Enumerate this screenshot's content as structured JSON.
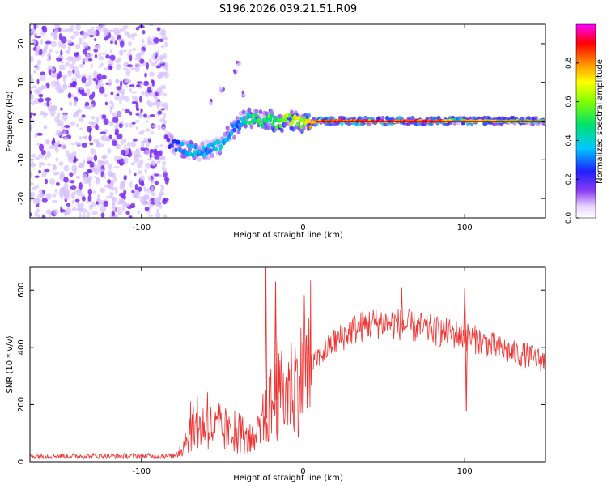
{
  "title": "S196.2026.039.21.51.R09",
  "colors": {
    "snr_line": "#ee3333",
    "frame": "#000000",
    "scatter_purple": "#7a2cf0",
    "scatter_light": "#d6c0ff"
  },
  "chart_data": [
    {
      "type": "heatmap",
      "xlabel": "Height of straight line (km)",
      "ylabel": "Frequency (Hz)",
      "xlim": [
        -169,
        150
      ],
      "ylim": [
        -25,
        25
      ],
      "xticks": [
        -100,
        0,
        100
      ],
      "yticks": [
        -20,
        -10,
        0,
        10,
        20
      ],
      "colorbar": {
        "label": "Normalized spectral amplitude",
        "range": [
          0,
          1
        ],
        "ticks": [
          "0.0",
          "0.2",
          "0.4",
          "0.6",
          "0.8"
        ],
        "tick_values": [
          0.0,
          0.2,
          0.4,
          0.6,
          0.8
        ],
        "colormap": "rainbow (white-purple-blue-cyan-green-yellow-red-magenta)"
      },
      "noise_region": {
        "x_from": -169,
        "x_to": -84,
        "frequency_range": [
          -25,
          25
        ]
      },
      "ridge": [
        {
          "x": -85,
          "f": -5,
          "amp": 0.15
        },
        {
          "x": -80,
          "f": -6,
          "amp": 0.25
        },
        {
          "x": -75,
          "f": -7,
          "amp": 0.35
        },
        {
          "x": -70,
          "f": -7.5,
          "amp": 0.4
        },
        {
          "x": -65,
          "f": -8,
          "amp": 0.38
        },
        {
          "x": -60,
          "f": -7.5,
          "amp": 0.35
        },
        {
          "x": -55,
          "f": -7,
          "amp": 0.4
        },
        {
          "x": -50,
          "f": -5.5,
          "amp": 0.35
        },
        {
          "x": -45,
          "f": -3,
          "amp": 0.35
        },
        {
          "x": -40,
          "f": -1,
          "amp": 0.3
        },
        {
          "x": -35,
          "f": 1,
          "amp": 0.45
        },
        {
          "x": -30,
          "f": 0.5,
          "amp": 0.55
        },
        {
          "x": -25,
          "f": 0,
          "amp": 0.5
        },
        {
          "x": -20,
          "f": 0.5,
          "amp": 0.55
        },
        {
          "x": -15,
          "f": -1,
          "amp": 0.6
        },
        {
          "x": -10,
          "f": 0.5,
          "amp": 0.65
        },
        {
          "x": -5,
          "f": 0,
          "amp": 0.7
        },
        {
          "x": 0,
          "f": -0.5,
          "amp": 0.6
        },
        {
          "x": 5,
          "f": -0.3,
          "amp": 0.75
        },
        {
          "x": 10,
          "f": 0,
          "amp": 0.85
        },
        {
          "x": 30,
          "f": 0,
          "amp": 0.9
        },
        {
          "x": 60,
          "f": 0,
          "amp": 0.88
        },
        {
          "x": 90,
          "f": 0,
          "amp": 0.82
        },
        {
          "x": 96,
          "f": 0.5,
          "amp": 0.3
        },
        {
          "x": 100,
          "f": 0,
          "amp": 0.75
        },
        {
          "x": 130,
          "f": 0,
          "amp": 0.6
        },
        {
          "x": 150,
          "f": 0,
          "amp": 0.55
        }
      ],
      "spur": [
        {
          "x": -40,
          "f": 15
        },
        {
          "x": -42,
          "f": 13
        },
        {
          "x": -50,
          "f": 8
        },
        {
          "x": -57,
          "f": 5
        },
        {
          "x": -37,
          "f": 7
        }
      ]
    },
    {
      "type": "line",
      "xlabel": "Height of straight line (km)",
      "ylabel": "SNR (10 * v/v)",
      "xlim": [
        -169,
        150
      ],
      "ylim": [
        0,
        680
      ],
      "xticks": [
        -100,
        0,
        100
      ],
      "yticks": [
        0,
        200,
        400,
        600
      ],
      "envelope": [
        {
          "x": -169,
          "y": 20
        },
        {
          "x": -140,
          "y": 20
        },
        {
          "x": -100,
          "y": 20
        },
        {
          "x": -80,
          "y": 20
        },
        {
          "x": -75,
          "y": 50
        },
        {
          "x": -70,
          "y": 110
        },
        {
          "x": -60,
          "y": 130
        },
        {
          "x": -50,
          "y": 100
        },
        {
          "x": -40,
          "y": 90
        },
        {
          "x": -30,
          "y": 60
        },
        {
          "x": -25,
          "y": 120
        },
        {
          "x": -20,
          "y": 200
        },
        {
          "x": -10,
          "y": 250
        },
        {
          "x": 0,
          "y": 300
        },
        {
          "x": 10,
          "y": 370
        },
        {
          "x": 20,
          "y": 420
        },
        {
          "x": 30,
          "y": 460
        },
        {
          "x": 40,
          "y": 480
        },
        {
          "x": 50,
          "y": 490
        },
        {
          "x": 60,
          "y": 480
        },
        {
          "x": 70,
          "y": 470
        },
        {
          "x": 80,
          "y": 460
        },
        {
          "x": 90,
          "y": 450
        },
        {
          "x": 100,
          "y": 440
        },
        {
          "x": 110,
          "y": 420
        },
        {
          "x": 120,
          "y": 400
        },
        {
          "x": 130,
          "y": 380
        },
        {
          "x": 140,
          "y": 370
        },
        {
          "x": 150,
          "y": 350
        }
      ],
      "spikes": [
        {
          "x": -23,
          "y": 680
        },
        {
          "x": -17,
          "y": 630
        },
        {
          "x": 61,
          "y": 610
        },
        {
          "x": 100,
          "y": 610
        },
        {
          "x": 101,
          "y": 175
        }
      ]
    }
  ]
}
